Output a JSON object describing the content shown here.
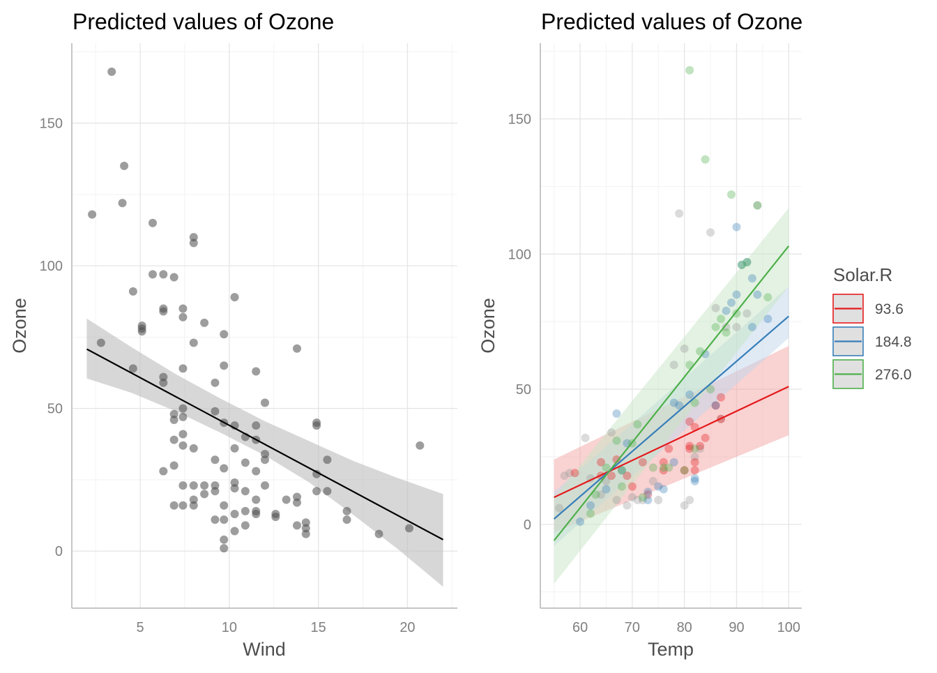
{
  "chart_data": [
    {
      "type": "scatter",
      "title": "Predicted values of Ozone",
      "xlabel": "Wind",
      "ylabel": "Ozone",
      "xlim": [
        1.2,
        22.8
      ],
      "ylim": [
        -20,
        178
      ],
      "x_ticks": [
        5,
        10,
        15,
        20
      ],
      "y_ticks": [
        0,
        50,
        100,
        150
      ],
      "grid": true,
      "points": [
        [
          2.3,
          118
        ],
        [
          2.8,
          73
        ],
        [
          3.4,
          168
        ],
        [
          4.0,
          122
        ],
        [
          4.1,
          135
        ],
        [
          4.6,
          64
        ],
        [
          4.6,
          91
        ],
        [
          5.1,
          77
        ],
        [
          5.1,
          78
        ],
        [
          5.1,
          79
        ],
        [
          5.7,
          115
        ],
        [
          5.7,
          97
        ],
        [
          6.3,
          97
        ],
        [
          6.3,
          84
        ],
        [
          6.3,
          85
        ],
        [
          6.3,
          28
        ],
        [
          6.3,
          61
        ],
        [
          6.3,
          59
        ],
        [
          6.9,
          96
        ],
        [
          6.9,
          48
        ],
        [
          6.9,
          39
        ],
        [
          6.9,
          46
        ],
        [
          6.9,
          16
        ],
        [
          6.9,
          30
        ],
        [
          7.4,
          85
        ],
        [
          7.4,
          82
        ],
        [
          7.4,
          64
        ],
        [
          7.4,
          50
        ],
        [
          7.4,
          47
        ],
        [
          7.4,
          37
        ],
        [
          7.4,
          41
        ],
        [
          7.4,
          23
        ],
        [
          7.4,
          16
        ],
        [
          8.0,
          110
        ],
        [
          8.0,
          108
        ],
        [
          8.0,
          73
        ],
        [
          8.0,
          36
        ],
        [
          8.0,
          23
        ],
        [
          8.0,
          16
        ],
        [
          8.0,
          18
        ],
        [
          8.6,
          80
        ],
        [
          8.6,
          23
        ],
        [
          8.6,
          20
        ],
        [
          9.2,
          59
        ],
        [
          9.2,
          49
        ],
        [
          9.2,
          32
        ],
        [
          9.2,
          23
        ],
        [
          9.2,
          21
        ],
        [
          9.2,
          11
        ],
        [
          9.7,
          76
        ],
        [
          9.7,
          65
        ],
        [
          9.7,
          45
        ],
        [
          9.7,
          29
        ],
        [
          9.7,
          16
        ],
        [
          9.7,
          11
        ],
        [
          9.7,
          4
        ],
        [
          9.7,
          1
        ],
        [
          10.3,
          89
        ],
        [
          10.3,
          44
        ],
        [
          10.3,
          36
        ],
        [
          10.3,
          24
        ],
        [
          10.3,
          22
        ],
        [
          10.3,
          13
        ],
        [
          10.3,
          7
        ],
        [
          10.9,
          40
        ],
        [
          10.9,
          31
        ],
        [
          10.9,
          21
        ],
        [
          10.9,
          14
        ],
        [
          10.9,
          9
        ],
        [
          11.5,
          63
        ],
        [
          11.5,
          44
        ],
        [
          11.5,
          39
        ],
        [
          11.5,
          28
        ],
        [
          11.5,
          18
        ],
        [
          11.5,
          14
        ],
        [
          11.5,
          13
        ],
        [
          12.0,
          52
        ],
        [
          12.0,
          34
        ],
        [
          12.0,
          32
        ],
        [
          12.0,
          23
        ],
        [
          12.6,
          12
        ],
        [
          12.6,
          13
        ],
        [
          13.2,
          18
        ],
        [
          13.8,
          71
        ],
        [
          13.8,
          19
        ],
        [
          13.8,
          17
        ],
        [
          13.8,
          9
        ],
        [
          14.3,
          10
        ],
        [
          14.3,
          8
        ],
        [
          14.3,
          6
        ],
        [
          14.9,
          45
        ],
        [
          14.9,
          44
        ],
        [
          14.9,
          27
        ],
        [
          14.9,
          21
        ],
        [
          15.5,
          32
        ],
        [
          15.5,
          21
        ],
        [
          16.6,
          11
        ],
        [
          16.6,
          14
        ],
        [
          18.4,
          6
        ],
        [
          20.1,
          8
        ],
        [
          20.7,
          37
        ]
      ],
      "fit_line": {
        "x": [
          2.0,
          22.0
        ],
        "y": [
          70.8,
          4.0
        ]
      },
      "ci_band": {
        "x": [
          2.0,
          4.5,
          7.0,
          9.5,
          12.0,
          14.5,
          17.0,
          19.5,
          22.0
        ],
        "lower": [
          60.5,
          55.5,
          49.0,
          41.5,
          33.5,
          24.0,
          12.5,
          0.5,
          -12.5
        ],
        "upper": [
          81.5,
          71.5,
          62.0,
          53.5,
          45.5,
          38.5,
          31.5,
          25.5,
          20.0
        ]
      },
      "point_color": "#4d4d4d",
      "line_color": "#000000",
      "band_color": "#bdbdbd"
    },
    {
      "type": "scatter",
      "title": "Predicted values of Ozone",
      "xlabel": "Temp",
      "ylabel": "Ozone",
      "xlim": [
        52.5,
        102.5
      ],
      "ylim": [
        -31,
        178
      ],
      "x_ticks": [
        60,
        70,
        80,
        90,
        100
      ],
      "y_ticks": [
        0,
        50,
        100,
        150
      ],
      "grid": true,
      "legend": {
        "title": "Solar.R",
        "position": "right",
        "entries": [
          "93.6",
          "184.8",
          "276.0"
        ]
      },
      "series": [
        {
          "name": "93.6",
          "color": "#e41a1c",
          "band_color": "#f4a6a6",
          "line": {
            "x": [
              55,
              100
            ],
            "y": [
              10,
              51
            ]
          },
          "band_lower": [
            -3,
            33
          ],
          "band_upper": [
            24,
            66
          ],
          "points": [
            [
              59,
              19
            ],
            [
              64,
              18
            ],
            [
              64,
              23
            ],
            [
              66,
              18
            ],
            [
              67,
              24
            ],
            [
              69,
              18
            ],
            [
              70,
              14
            ],
            [
              72,
              23
            ],
            [
              73,
              11
            ],
            [
              76,
              20
            ],
            [
              76,
              23
            ],
            [
              77,
              28
            ],
            [
              80,
              20
            ],
            [
              81,
              29
            ],
            [
              81,
              28
            ],
            [
              81,
              38
            ],
            [
              82,
              20
            ],
            [
              82,
              23
            ],
            [
              82,
              36
            ],
            [
              83,
              29
            ],
            [
              84,
              32
            ],
            [
              86,
              44
            ],
            [
              87,
              39
            ],
            [
              87,
              47
            ]
          ]
        },
        {
          "name": "184.8",
          "color": "#377eb8",
          "band_color": "#c0d6ec",
          "line": {
            "x": [
              55,
              100
            ],
            "y": [
              2,
              77
            ]
          },
          "band_lower": [
            -8,
            69
          ],
          "band_upper": [
            12,
            88
          ],
          "points": [
            [
              60,
              1
            ],
            [
              62,
              7
            ],
            [
              65,
              13
            ],
            [
              67,
              41
            ],
            [
              68,
              20
            ],
            [
              69,
              30
            ],
            [
              73,
              12
            ],
            [
              73,
              9
            ],
            [
              75,
              14
            ],
            [
              76,
              13
            ],
            [
              78,
              23
            ],
            [
              78,
              45
            ],
            [
              79,
              44
            ],
            [
              81,
              48
            ],
            [
              82,
              16
            ],
            [
              82,
              17
            ],
            [
              84,
              63
            ],
            [
              86,
              44
            ],
            [
              88,
              79
            ],
            [
              89,
              82
            ],
            [
              90,
              85
            ],
            [
              90,
              110
            ],
            [
              91,
              96
            ],
            [
              92,
              97
            ],
            [
              93,
              91
            ],
            [
              93,
              73
            ],
            [
              94,
              85
            ],
            [
              96,
              76
            ]
          ]
        },
        {
          "name": "276.0",
          "color": "#4daf4a",
          "band_color": "#c7e6c6",
          "line": {
            "x": [
              55,
              100
            ],
            "y": [
              -6,
              103
            ]
          },
          "band_lower": [
            -22,
            88
          ],
          "band_upper": [
            10,
            117
          ],
          "points": [
            [
              62,
              4
            ],
            [
              63,
              11
            ],
            [
              65,
              21
            ],
            [
              67,
              31
            ],
            [
              68,
              14
            ],
            [
              68,
              20
            ],
            [
              70,
              30
            ],
            [
              71,
              37
            ],
            [
              72,
              10
            ],
            [
              74,
              21
            ],
            [
              76,
              21
            ],
            [
              77,
              21
            ],
            [
              80,
              20
            ],
            [
              81,
              59
            ],
            [
              81,
              168
            ],
            [
              82,
              45
            ],
            [
              82,
              28
            ],
            [
              83,
              64
            ],
            [
              84,
              135
            ],
            [
              85,
              50
            ],
            [
              86,
              73
            ],
            [
              87,
              76
            ],
            [
              88,
              71
            ],
            [
              89,
              122
            ],
            [
              90,
              78
            ],
            [
              91,
              96
            ],
            [
              92,
              97
            ],
            [
              94,
              118
            ],
            [
              96,
              84
            ]
          ]
        },
        {
          "name": "",
          "color": "#999999",
          "band_color": "none",
          "points": [
            [
              56,
              6
            ],
            [
              57,
              18
            ],
            [
              58,
              19
            ],
            [
              61,
              32
            ],
            [
              62,
              17
            ],
            [
              64,
              11
            ],
            [
              65,
              16
            ],
            [
              66,
              34
            ],
            [
              67,
              9
            ],
            [
              69,
              7
            ],
            [
              70,
              10
            ],
            [
              71,
              9
            ],
            [
              72,
              9
            ],
            [
              74,
              16
            ],
            [
              75,
              9
            ],
            [
              78,
              59
            ],
            [
              79,
              115
            ],
            [
              80,
              7
            ],
            [
              80,
              65
            ],
            [
              81,
              9
            ],
            [
              82,
              25
            ],
            [
              83,
              28
            ],
            [
              85,
              108
            ],
            [
              86,
              80
            ],
            [
              87,
              39
            ],
            [
              88,
              73
            ],
            [
              90,
              73
            ],
            [
              92,
              78
            ],
            [
              94,
              118
            ]
          ]
        }
      ]
    }
  ]
}
